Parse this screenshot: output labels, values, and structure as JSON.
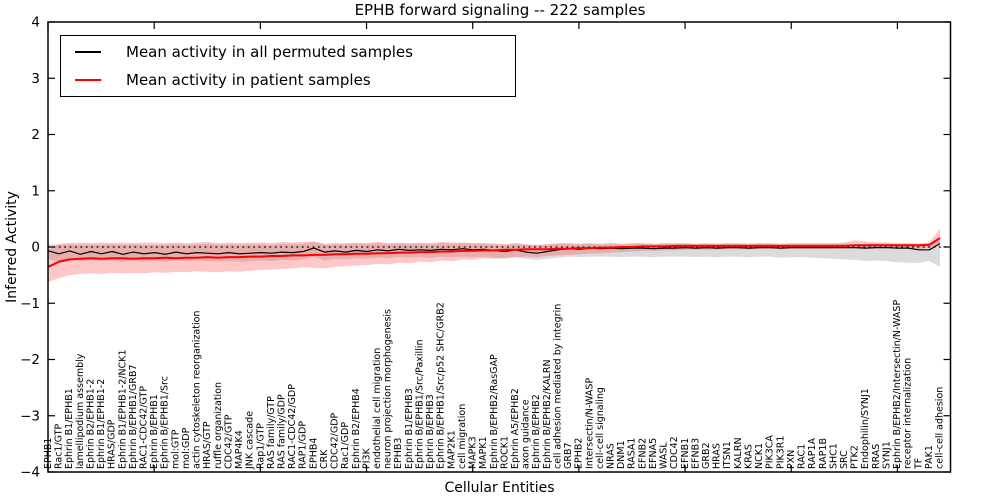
{
  "chart_data": {
    "type": "line",
    "title": "EPHB forward signaling -- 222 samples",
    "xlabel": "Cellular Entities",
    "ylabel": "Inferred Activity",
    "ylim": [
      -4,
      4
    ],
    "yticks": [
      4,
      3,
      2,
      1,
      0,
      -1,
      -2,
      -3,
      -4
    ],
    "grid": false,
    "legend_position": "upper left",
    "zero_line": {
      "y": 0,
      "style": "dotted",
      "color": "#000000"
    },
    "categories": [
      "EPHB1",
      "Rac1/GTP",
      "Ephrin B1/EPHB1",
      "lamellipodium assembly",
      "Ephrin B2/EPHB1-2",
      "Ephrin B1/EPHB1-2",
      "HRAS/GDP",
      "Ephrin B1/EPHB1-2/NCK1",
      "Ephrin B/EPHB1/GRB7",
      "RAC1-CDC42/GTP",
      "Ephrin B/EPHB1",
      "Ephrin B/EPHB1/Src",
      "mol:GTP",
      "mol:GDP",
      "actin cytoskeleton reorganization",
      "HRAS/GTP",
      "ruffle organization",
      "CDC42/GTP",
      "MAP4K4",
      "JNK cascade",
      "Rap1/GTP",
      "RAS family/GTP",
      "RAS family/GDP",
      "RAC1-CDC42/GDP",
      "RAP1/GDP",
      "EPHB4",
      "CRK",
      "CDC42/GDP",
      "Rac1/GDP",
      "Ephrin B2/EPHB4",
      "PI3K",
      "endothelial cell migration",
      "neuron projection morphogenesis",
      "EPHB3",
      "Ephrin B1/EPHB3",
      "Ephrin B/EPHB1/Src/Paxillin",
      "Ephrin B/EPHB3",
      "Ephrin B/EPHB1/Src/p52 SHC/GRB2",
      "MAP2K1",
      "cell migration",
      "MAPK3",
      "MAPK1",
      "Ephrin B/EPHB2/RasGAP",
      "ROCK1",
      "Ephrin A5/EPHB2",
      "axon guidance",
      "Ephrin B/EPHB2",
      "Ephrin B/EPHB2/KALRN",
      "cell adhesion mediated by integrin",
      "GRB7",
      "EPHB2",
      "Intersectin/N-WASP",
      "cell-cell signaling",
      "NRAS",
      "DNM1",
      "RASA1",
      "EFNB2",
      "EFNA5",
      "WASL",
      "CDC42",
      "EFNB1",
      "EFNB3",
      "GRB2",
      "HRAS",
      "ITSN1",
      "KALRN",
      "KRAS",
      "NCK1",
      "PIK3CA",
      "PIK3R1",
      "PXN",
      "RAC1",
      "RAP1A",
      "RAP1B",
      "SHC1",
      "SRC",
      "PTK2",
      "Endophilin/SYNJ1",
      "RRAS",
      "SYNJ1",
      "Ephrin B/EPHB2/Intersectin/N-WASP",
      "receptor internalization",
      "TF",
      "PAK1",
      "cell-cell adhesion"
    ],
    "series": [
      {
        "name": "Mean activity in all permuted samples",
        "color": "#000000",
        "line_width": 1.2,
        "band_color": "#999999",
        "band_opacity": 0.35,
        "values": [
          -0.07,
          -0.12,
          -0.07,
          -0.13,
          -0.08,
          -0.12,
          -0.08,
          -0.13,
          -0.09,
          -0.12,
          -0.1,
          -0.13,
          -0.09,
          -0.12,
          -0.1,
          -0.11,
          -0.12,
          -0.1,
          -0.12,
          -0.11,
          -0.1,
          -0.11,
          -0.09,
          -0.1,
          -0.08,
          -0.02,
          -0.09,
          -0.07,
          -0.09,
          -0.06,
          -0.08,
          -0.05,
          -0.07,
          -0.04,
          -0.06,
          -0.05,
          -0.06,
          -0.04,
          -0.05,
          -0.03,
          -0.05,
          -0.04,
          -0.06,
          -0.08,
          -0.05,
          -0.09,
          -0.11,
          -0.08,
          -0.05,
          -0.03,
          -0.04,
          -0.02,
          -0.03,
          -0.02,
          -0.03,
          -0.02,
          -0.02,
          -0.03,
          -0.02,
          -0.02,
          -0.01,
          -0.02,
          -0.01,
          -0.02,
          -0.01,
          -0.01,
          -0.02,
          -0.01,
          -0.01,
          -0.02,
          -0.01,
          -0.01,
          -0.01,
          -0.01,
          -0.01,
          -0.01,
          -0.01,
          -0.02,
          -0.01,
          -0.01,
          -0.02,
          -0.02,
          -0.05,
          -0.05,
          0.06
        ],
        "band_hi": [
          0.05,
          0.04,
          0.05,
          0.04,
          0.05,
          0.04,
          0.05,
          0.04,
          0.05,
          0.04,
          0.04,
          0.04,
          0.05,
          0.04,
          0.05,
          0.06,
          0.04,
          0.05,
          0.04,
          0.05,
          0.05,
          0.04,
          0.06,
          0.05,
          0.06,
          0.09,
          0.04,
          0.05,
          0.05,
          0.06,
          0.05,
          0.07,
          0.05,
          0.06,
          0.05,
          0.06,
          0.05,
          0.07,
          0.06,
          0.07,
          0.06,
          0.06,
          0.05,
          0.04,
          0.06,
          0.04,
          0.03,
          0.04,
          0.06,
          0.06,
          0.05,
          0.06,
          0.05,
          0.06,
          0.05,
          0.06,
          0.06,
          0.05,
          0.06,
          0.06,
          0.06,
          0.05,
          0.06,
          0.05,
          0.06,
          0.06,
          0.05,
          0.06,
          0.06,
          0.05,
          0.06,
          0.06,
          0.06,
          0.06,
          0.06,
          0.06,
          0.06,
          0.05,
          0.06,
          0.06,
          0.05,
          0.05,
          0.04,
          0.05,
          0.12
        ],
        "band_lo": [
          -0.22,
          -0.25,
          -0.22,
          -0.26,
          -0.23,
          -0.25,
          -0.24,
          -0.26,
          -0.24,
          -0.26,
          -0.25,
          -0.26,
          -0.24,
          -0.25,
          -0.24,
          -0.25,
          -0.26,
          -0.25,
          -0.26,
          -0.25,
          -0.24,
          -0.25,
          -0.23,
          -0.24,
          -0.22,
          -0.17,
          -0.24,
          -0.21,
          -0.22,
          -0.2,
          -0.21,
          -0.19,
          -0.2,
          -0.18,
          -0.19,
          -0.18,
          -0.19,
          -0.17,
          -0.18,
          -0.17,
          -0.18,
          -0.17,
          -0.19,
          -0.21,
          -0.18,
          -0.21,
          -0.23,
          -0.21,
          -0.19,
          -0.17,
          -0.18,
          -0.17,
          -0.17,
          -0.17,
          -0.18,
          -0.17,
          -0.17,
          -0.18,
          -0.17,
          -0.17,
          -0.17,
          -0.18,
          -0.17,
          -0.18,
          -0.17,
          -0.17,
          -0.18,
          -0.17,
          -0.17,
          -0.19,
          -0.18,
          -0.18,
          -0.19,
          -0.2,
          -0.21,
          -0.22,
          -0.23,
          -0.25,
          -0.24,
          -0.25,
          -0.27,
          -0.28,
          -0.28,
          -0.25,
          -0.35
        ]
      },
      {
        "name": "Mean activity in patient samples",
        "color": "#ff0000",
        "line_width": 2,
        "band_color": "#ff4444",
        "band_opacity": 0.3,
        "values": [
          -0.35,
          -0.26,
          -0.22,
          -0.21,
          -0.2,
          -0.21,
          -0.2,
          -0.2,
          -0.21,
          -0.2,
          -0.2,
          -0.19,
          -0.2,
          -0.19,
          -0.19,
          -0.18,
          -0.19,
          -0.18,
          -0.18,
          -0.17,
          -0.17,
          -0.16,
          -0.16,
          -0.15,
          -0.15,
          -0.14,
          -0.14,
          -0.13,
          -0.13,
          -0.12,
          -0.12,
          -0.11,
          -0.11,
          -0.1,
          -0.1,
          -0.09,
          -0.09,
          -0.08,
          -0.08,
          -0.07,
          -0.07,
          -0.06,
          -0.06,
          -0.05,
          -0.05,
          -0.04,
          -0.04,
          -0.04,
          -0.03,
          -0.03,
          -0.02,
          -0.02,
          -0.01,
          -0.01,
          0.0,
          0.0,
          0.01,
          0.01,
          0.01,
          0.02,
          0.02,
          0.02,
          0.02,
          0.02,
          0.02,
          0.02,
          0.02,
          0.02,
          0.02,
          0.02,
          0.02,
          0.02,
          0.02,
          0.02,
          0.02,
          0.02,
          0.03,
          0.03,
          0.03,
          0.03,
          0.03,
          0.03,
          0.03,
          0.04,
          0.16
        ],
        "band_hi": [
          -0.05,
          0.06,
          0.07,
          0.08,
          0.07,
          0.08,
          0.07,
          0.08,
          0.07,
          0.08,
          0.08,
          0.07,
          0.08,
          0.07,
          0.08,
          0.09,
          0.07,
          0.08,
          0.07,
          0.08,
          0.08,
          0.07,
          0.09,
          0.08,
          0.09,
          0.1,
          0.06,
          0.07,
          0.07,
          0.08,
          0.07,
          0.09,
          0.07,
          0.08,
          0.07,
          0.08,
          0.07,
          0.09,
          0.08,
          0.08,
          0.07,
          0.07,
          0.06,
          0.05,
          0.07,
          0.05,
          0.04,
          0.05,
          0.07,
          0.07,
          0.06,
          0.07,
          0.06,
          0.07,
          0.06,
          0.07,
          0.07,
          0.06,
          0.07,
          0.07,
          0.07,
          0.06,
          0.07,
          0.06,
          0.07,
          0.07,
          0.06,
          0.07,
          0.07,
          0.06,
          0.07,
          0.07,
          0.07,
          0.07,
          0.07,
          0.08,
          0.12,
          0.1,
          0.08,
          0.08,
          0.07,
          0.07,
          0.06,
          0.08,
          0.33
        ],
        "band_lo": [
          -0.62,
          -0.55,
          -0.5,
          -0.48,
          -0.47,
          -0.48,
          -0.46,
          -0.47,
          -0.46,
          -0.47,
          -0.45,
          -0.46,
          -0.44,
          -0.45,
          -0.43,
          -0.44,
          -0.45,
          -0.43,
          -0.44,
          -0.42,
          -0.41,
          -0.4,
          -0.39,
          -0.38,
          -0.36,
          -0.37,
          -0.38,
          -0.35,
          -0.34,
          -0.33,
          -0.32,
          -0.3,
          -0.31,
          -0.28,
          -0.29,
          -0.26,
          -0.27,
          -0.24,
          -0.25,
          -0.22,
          -0.23,
          -0.2,
          -0.21,
          -0.19,
          -0.18,
          -0.17,
          -0.18,
          -0.16,
          -0.15,
          -0.14,
          -0.13,
          -0.12,
          -0.11,
          -0.1,
          -0.09,
          -0.08,
          -0.07,
          -0.07,
          -0.06,
          -0.06,
          -0.05,
          -0.05,
          -0.05,
          -0.04,
          -0.04,
          -0.04,
          -0.04,
          -0.03,
          -0.03,
          -0.03,
          -0.03,
          -0.03,
          -0.03,
          -0.03,
          -0.03,
          -0.02,
          -0.02,
          -0.02,
          -0.02,
          -0.02,
          -0.02,
          -0.02,
          -0.03,
          -0.01,
          0.05
        ]
      }
    ]
  }
}
